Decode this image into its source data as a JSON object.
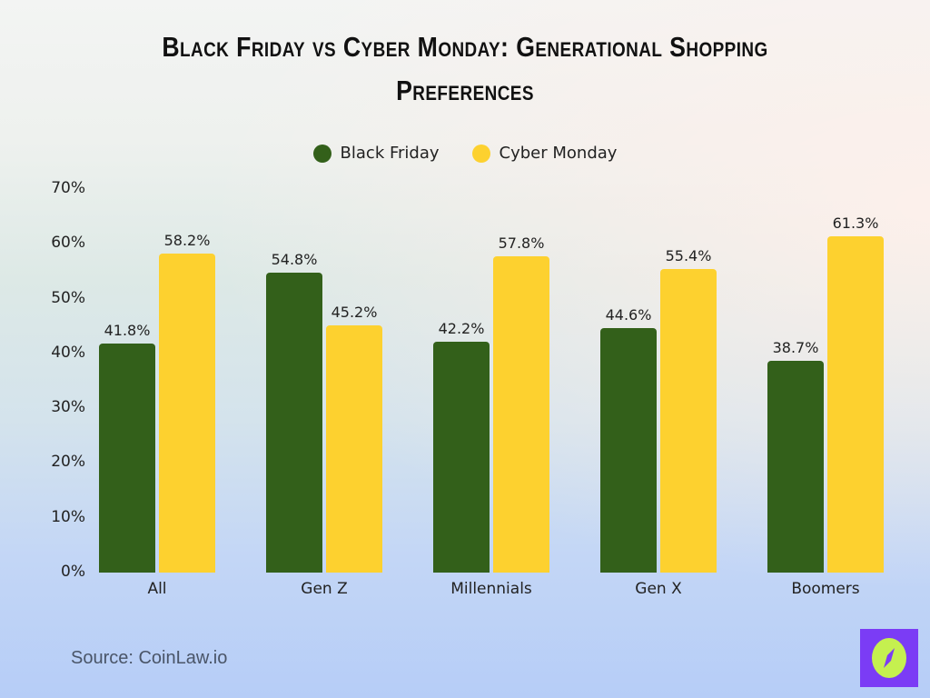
{
  "title": "Black Friday vs Cyber Monday: Generational Shopping Preferences",
  "title_lines": [
    "Black Friday vs Cyber Monday: Generational Shopping",
    "Preferences"
  ],
  "legend": [
    {
      "label": "Black Friday",
      "color": "#33601a"
    },
    {
      "label": "Cyber Monday",
      "color": "#fdd12f"
    }
  ],
  "y_ticks": [
    "0%",
    "10%",
    "20%",
    "30%",
    "40%",
    "50%",
    "60%",
    "70%"
  ],
  "categories": [
    "All",
    "Gen Z",
    "Millennials",
    "Gen X",
    "Boomers"
  ],
  "value_labels": {
    "black_friday": [
      "41.8%",
      "54.8%",
      "42.2%",
      "44.6%",
      "38.7%"
    ],
    "cyber_monday": [
      "58.2%",
      "45.2%",
      "57.8%",
      "55.4%",
      "61.3%"
    ]
  },
  "source": "Source: CoinLaw.io",
  "logo": {
    "icon": "compass-icon",
    "bg_color": "#7b3cf5",
    "fg_color": "#c5f04f"
  },
  "chart_data": {
    "type": "bar",
    "title": "Black Friday vs Cyber Monday: Generational Shopping Preferences",
    "categories": [
      "All",
      "Gen Z",
      "Millennials",
      "Gen X",
      "Boomers"
    ],
    "series": [
      {
        "name": "Black Friday",
        "color": "#33601a",
        "values": [
          41.8,
          54.8,
          42.2,
          44.6,
          38.7
        ]
      },
      {
        "name": "Cyber Monday",
        "color": "#fdd12f",
        "values": [
          58.2,
          45.2,
          57.8,
          55.4,
          61.3
        ]
      }
    ],
    "xlabel": "",
    "ylabel": "",
    "ylim": [
      0,
      70
    ],
    "y_tick_step": 10,
    "y_format": "percent",
    "grid": false,
    "legend_position": "top-center",
    "data_labels": true,
    "source": "Source: CoinLaw.io"
  }
}
